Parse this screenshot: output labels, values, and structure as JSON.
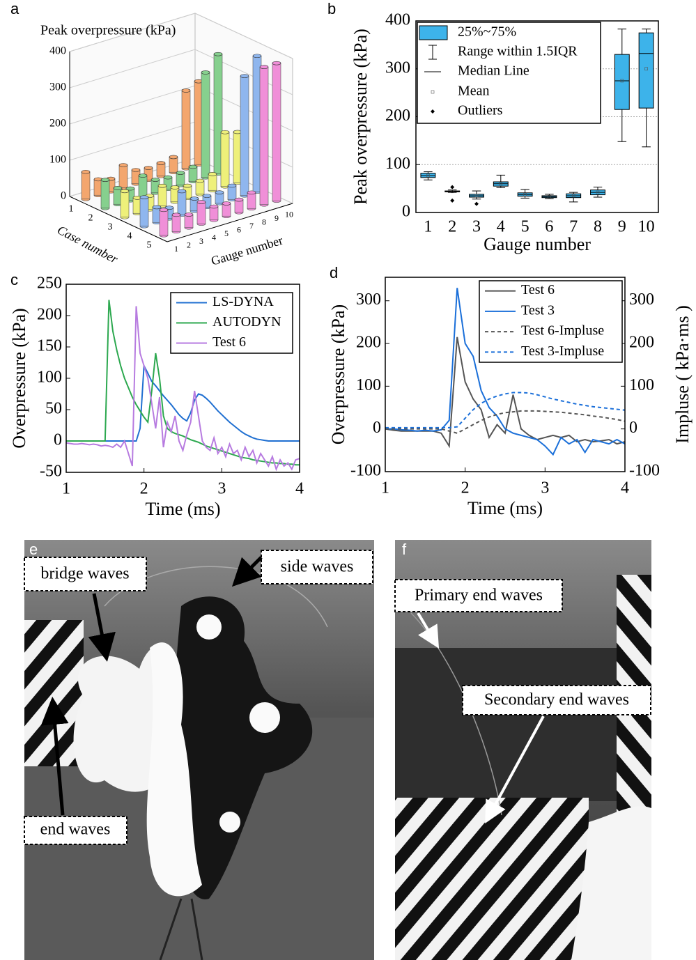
{
  "chart_data": [
    {
      "type": "bar3d",
      "panel": "a",
      "ylabel": "Peak overpressure (kPa)",
      "xlabel": "Gauge number",
      "zlabel": "Case number",
      "categories": [
        "1",
        "2",
        "3",
        "4",
        "5",
        "6",
        "7",
        "8",
        "9",
        "10"
      ],
      "ylim": [
        0,
        400
      ],
      "yticks": [
        0,
        100,
        200,
        300,
        400
      ],
      "series": [
        {
          "name": "1",
          "color": "#f3a66e",
          "values": [
            75,
            44,
            35,
            62,
            38,
            33,
            36,
            42,
            215,
            230
          ]
        },
        {
          "name": "2",
          "color": "#86d08e",
          "values": [
            78,
            45,
            33,
            58,
            36,
            32,
            34,
            40,
            290,
            330
          ]
        },
        {
          "name": "3",
          "color": "#eef07a",
          "values": [
            72,
            43,
            38,
            55,
            40,
            34,
            37,
            45,
            150,
            140
          ]
        },
        {
          "name": "4",
          "color": "#8fb6ee",
          "values": [
            80,
            42,
            30,
            65,
            34,
            31,
            30,
            38,
            330,
            375
          ]
        },
        {
          "name": "5",
          "color": "#f08fd8",
          "values": [
            70,
            46,
            36,
            60,
            37,
            35,
            35,
            44,
            380,
            380
          ]
        }
      ]
    },
    {
      "type": "box",
      "panel": "b",
      "ylabel": "Peak overpressure (kPa)",
      "xlabel": "Gauge number",
      "color": "#3db3ea",
      "categories": [
        "1",
        "2",
        "3",
        "4",
        "5",
        "6",
        "7",
        "8",
        "9",
        "10"
      ],
      "ylim": [
        0,
        400
      ],
      "yticks": [
        0,
        100,
        200,
        300,
        400
      ],
      "grid": true,
      "legend": [
        "25%~75%",
        "Range within 1.5IQR",
        "Median Line",
        "Mean",
        "Outliers"
      ],
      "boxes": [
        {
          "whisker_low": 68,
          "q1": 73,
          "median": 77,
          "q3": 82,
          "whisker_high": 85,
          "mean": 77
        },
        {
          "whisker_low": 42,
          "q1": 43,
          "median": 44,
          "q3": 45,
          "whisker_high": 47,
          "mean": 44,
          "outliers": [
            53,
            25
          ]
        },
        {
          "whisker_low": 28,
          "q1": 32,
          "median": 35,
          "q3": 38,
          "whisker_high": 45,
          "mean": 35,
          "outliers": [
            18
          ]
        },
        {
          "whisker_low": 52,
          "q1": 55,
          "median": 60,
          "q3": 64,
          "whisker_high": 78,
          "mean": 60
        },
        {
          "whisker_low": 30,
          "q1": 34,
          "median": 37,
          "q3": 41,
          "whisker_high": 48,
          "mean": 37
        },
        {
          "whisker_low": 29,
          "q1": 31,
          "median": 33,
          "q3": 35,
          "whisker_high": 38,
          "mean": 33
        },
        {
          "whisker_low": 22,
          "q1": 31,
          "median": 35,
          "q3": 39,
          "whisker_high": 42,
          "mean": 35
        },
        {
          "whisker_low": 32,
          "q1": 37,
          "median": 42,
          "q3": 47,
          "whisker_high": 53,
          "mean": 42
        },
        {
          "whisker_low": 148,
          "q1": 215,
          "median": 275,
          "q3": 330,
          "whisker_high": 383,
          "mean": 275
        },
        {
          "whisker_low": 137,
          "q1": 218,
          "median": 332,
          "q3": 375,
          "whisker_high": 383,
          "mean": 300
        }
      ]
    },
    {
      "type": "line",
      "panel": "c",
      "ylabel": "Overpressure (kPa)",
      "xlabel": "Time (ms)",
      "xlim": [
        1,
        4
      ],
      "xticks": [
        1,
        2,
        3,
        4
      ],
      "ylim": [
        -50,
        250
      ],
      "yticks": [
        -50,
        0,
        50,
        100,
        150,
        200,
        250
      ],
      "x": [
        1,
        1.05,
        1.1,
        1.15,
        1.2,
        1.25,
        1.3,
        1.35,
        1.4,
        1.45,
        1.5,
        1.55,
        1.6,
        1.65,
        1.7,
        1.75,
        1.8,
        1.85,
        1.9,
        1.95,
        2,
        2.05,
        2.1,
        2.15,
        2.2,
        2.25,
        2.3,
        2.35,
        2.4,
        2.45,
        2.5,
        2.55,
        2.6,
        2.65,
        2.7,
        2.75,
        2.8,
        2.85,
        2.9,
        2.95,
        3,
        3.05,
        3.1,
        3.15,
        3.2,
        3.25,
        3.3,
        3.35,
        3.4,
        3.45,
        3.5,
        3.55,
        3.6,
        3.65,
        3.7,
        3.75,
        3.8,
        3.85,
        3.9,
        3.95,
        4
      ],
      "series": [
        {
          "name": "LS-DYNA",
          "color": "#1f6fd1",
          "values": [
            0,
            0,
            0,
            0,
            0,
            0,
            0,
            0,
            0,
            0,
            0,
            0,
            0,
            0,
            0,
            0,
            0,
            0,
            0,
            20,
            120,
            108,
            95,
            88,
            80,
            72,
            65,
            58,
            50,
            42,
            36,
            32,
            45,
            65,
            75,
            73,
            68,
            62,
            55,
            48,
            42,
            36,
            30,
            25,
            20,
            15,
            11,
            8,
            5,
            3,
            2,
            1,
            0,
            0,
            0,
            0,
            0,
            0,
            0,
            0,
            0
          ]
        },
        {
          "name": "AUTODYN",
          "color": "#2ca84f",
          "values": [
            0,
            0,
            0,
            0,
            0,
            0,
            0,
            0,
            0,
            0,
            0,
            225,
            175,
            145,
            120,
            100,
            85,
            70,
            58,
            48,
            38,
            30,
            80,
            140,
            100,
            40,
            20,
            15,
            12,
            10,
            8,
            5,
            2,
            0,
            -2,
            -5,
            -8,
            -10,
            -12,
            -14,
            -16,
            -18,
            -20,
            -22,
            -24,
            -26,
            -27,
            -28,
            -30,
            -31,
            -32,
            -33,
            -34,
            -35,
            -35,
            -36,
            -36,
            -37,
            -37,
            -38,
            -38
          ]
        },
        {
          "name": "Test 6",
          "color": "#b77be0",
          "values": [
            -3,
            -4,
            -5,
            -5,
            -4,
            -5,
            -6,
            -5,
            -6,
            -8,
            -7,
            -8,
            -10,
            -5,
            -10,
            0,
            -20,
            -40,
            215,
            140,
            120,
            100,
            60,
            20,
            70,
            -10,
            30,
            15,
            40,
            0,
            -15,
            10,
            30,
            80,
            40,
            0,
            -10,
            -15,
            5,
            -20,
            -10,
            -25,
            -5,
            -20,
            -15,
            -30,
            -10,
            -25,
            -15,
            -35,
            -20,
            -30,
            -40,
            -25,
            -45,
            -30,
            -40,
            -35,
            -45,
            -30,
            -28
          ]
        }
      ]
    },
    {
      "type": "line",
      "panel": "d",
      "ylabel": "Overpressure (kPa)",
      "y2label": "Impluse ( kPa·ms )",
      "xlabel": "Time (ms)",
      "xlim": [
        1,
        4
      ],
      "xticks": [
        1,
        2,
        3,
        4
      ],
      "ylim": [
        -100,
        355
      ],
      "yticks": [
        -100,
        0,
        100,
        200,
        300
      ],
      "y2lim": [
        -100,
        355
      ],
      "y2ticks": [
        -100,
        0,
        100,
        200,
        300
      ],
      "x": [
        1,
        1.1,
        1.2,
        1.3,
        1.4,
        1.5,
        1.6,
        1.7,
        1.8,
        1.9,
        2,
        2.1,
        2.2,
        2.3,
        2.4,
        2.5,
        2.6,
        2.7,
        2.8,
        2.9,
        3,
        3.1,
        3.2,
        3.3,
        3.4,
        3.5,
        3.6,
        3.7,
        3.8,
        3.9,
        4
      ],
      "series": [
        {
          "name": "Test 6",
          "color": "#555555",
          "values": [
            0,
            -3,
            -5,
            -5,
            -5,
            -5,
            -5,
            -10,
            -40,
            215,
            110,
            70,
            45,
            -20,
            10,
            -10,
            80,
            0,
            -15,
            -25,
            -20,
            -15,
            -20,
            -15,
            -30,
            -25,
            -30,
            -28,
            -25,
            -35,
            -30
          ]
        },
        {
          "name": "Test 3",
          "color": "#1a6fd9",
          "values": [
            0,
            0,
            -2,
            -3,
            -5,
            -3,
            -5,
            -2,
            20,
            330,
            200,
            170,
            90,
            50,
            30,
            0,
            -10,
            -15,
            -20,
            -25,
            -40,
            -60,
            -20,
            -35,
            -25,
            -55,
            -25,
            -30,
            -35,
            -25,
            -35
          ]
        },
        {
          "name": "Test 6-Impluse",
          "color": "#555555",
          "dashed": true,
          "axis": "y2",
          "values": [
            0,
            0,
            0,
            0,
            0,
            0,
            0,
            0,
            -5,
            -10,
            0,
            10,
            20,
            28,
            34,
            38,
            40,
            42,
            42,
            42,
            41,
            40,
            39,
            37,
            35,
            33,
            30,
            28,
            25,
            22,
            18
          ]
        },
        {
          "name": "Test 3-Impluse",
          "color": "#1a6fd9",
          "dashed": true,
          "axis": "y2",
          "values": [
            3,
            3,
            3,
            3,
            3,
            3,
            3,
            3,
            3,
            5,
            25,
            45,
            60,
            70,
            77,
            82,
            85,
            85,
            84,
            80,
            75,
            70,
            66,
            62,
            58,
            55,
            52,
            50,
            48,
            46,
            44
          ]
        }
      ]
    }
  ],
  "photos": [
    {
      "panel": "e",
      "annotations": [
        "bridge waves",
        "side waves",
        "end waves"
      ]
    },
    {
      "panel": "f",
      "annotations": [
        "Primary end waves",
        "Secondary end waves"
      ]
    }
  ]
}
